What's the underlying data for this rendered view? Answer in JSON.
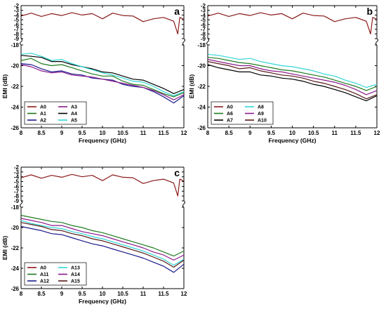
{
  "chart_data": [
    {
      "type": "line",
      "panel_label": "a",
      "xlabel": "Frequency (GHz)",
      "ylabel": "EMI (dB)",
      "xlim": [
        8,
        12
      ],
      "xticks": [
        "8",
        "8.5",
        "9",
        "9.5",
        "10",
        "10.5",
        "11",
        "11.5",
        "12"
      ],
      "upper_ylim": [
        -9,
        -2
      ],
      "upper_yticks": [
        "-2",
        "-3",
        "-4",
        "-5",
        "-6",
        "-7",
        "-8",
        "-9"
      ],
      "lower_ylim": [
        -26,
        -18
      ],
      "lower_yticks": [
        "-18",
        "-20",
        "-22",
        "-24",
        "-26"
      ],
      "legend_position": "lower-left",
      "series": [
        {
          "name": "A0",
          "color": "#8b1a1a",
          "x": [
            8,
            8.25,
            8.5,
            8.75,
            9,
            9.25,
            9.5,
            9.75,
            10,
            10.25,
            10.5,
            10.75,
            11,
            11.25,
            11.5,
            11.75,
            11.85,
            11.9,
            12
          ],
          "y": [
            -4.2,
            -3.6,
            -4.3,
            -3.7,
            -4.1,
            -3.5,
            -4.0,
            -3.7,
            -4.8,
            -3.6,
            -4.1,
            -4.2,
            -5.4,
            -4.8,
            -4.5,
            -5.3,
            -8.0,
            -4.5,
            -4.9
          ]
        },
        {
          "name": "A1",
          "color": "#1f7a1f",
          "x": [
            8,
            8.25,
            8.5,
            8.75,
            9,
            9.25,
            9.5,
            9.75,
            10,
            10.25,
            10.5,
            10.75,
            11,
            11.25,
            11.5,
            11.75,
            12
          ],
          "y": [
            -19.5,
            -19.3,
            -19.8,
            -20.0,
            -19.9,
            -20.2,
            -20.5,
            -20.8,
            -21.0,
            -21.0,
            -21.5,
            -21.8,
            -21.9,
            -22.3,
            -22.7,
            -23.0,
            -22.6
          ]
        },
        {
          "name": "A2",
          "color": "#1a1a8b",
          "x": [
            8,
            8.25,
            8.5,
            8.75,
            9,
            9.25,
            9.5,
            9.75,
            10,
            10.25,
            10.5,
            10.75,
            11,
            11.25,
            11.5,
            11.75,
            12
          ],
          "y": [
            -19.8,
            -19.9,
            -20.3,
            -20.6,
            -20.5,
            -20.8,
            -20.9,
            -21.2,
            -21.3,
            -21.4,
            -21.8,
            -22.0,
            -22.1,
            -22.5,
            -23.0,
            -23.6,
            -22.9
          ]
        },
        {
          "name": "A3",
          "color": "#8b1a8b",
          "x": [
            8,
            8.25,
            8.5,
            8.75,
            9,
            9.25,
            9.5,
            9.75,
            10,
            10.25,
            10.5,
            10.75,
            11,
            11.25,
            11.5,
            11.75,
            12
          ],
          "y": [
            -19.9,
            -20.1,
            -20.5,
            -20.7,
            -20.6,
            -20.9,
            -21.0,
            -21.1,
            -21.3,
            -21.5,
            -21.7,
            -21.9,
            -22.1,
            -22.4,
            -22.8,
            -23.3,
            -22.8
          ]
        },
        {
          "name": "A4",
          "color": "#000000",
          "x": [
            8,
            8.25,
            8.5,
            8.75,
            9,
            9.25,
            9.5,
            9.75,
            10,
            10.25,
            10.5,
            10.75,
            11,
            11.25,
            11.5,
            11.75,
            12
          ],
          "y": [
            -19.0,
            -19.1,
            -19.2,
            -19.6,
            -19.6,
            -19.9,
            -20.1,
            -20.3,
            -20.6,
            -20.7,
            -21.0,
            -21.3,
            -21.4,
            -21.8,
            -22.2,
            -22.7,
            -22.3
          ]
        },
        {
          "name": "A5",
          "color": "#33d6d6",
          "x": [
            8,
            8.25,
            8.5,
            8.75,
            9,
            9.25,
            9.5,
            9.75,
            10,
            10.25,
            10.5,
            10.75,
            11,
            11.25,
            11.5,
            11.75,
            12
          ],
          "y": [
            -18.9,
            -18.8,
            -19.1,
            -19.5,
            -19.4,
            -19.8,
            -20.1,
            -20.4,
            -20.7,
            -20.9,
            -21.2,
            -21.5,
            -21.6,
            -22.0,
            -22.5,
            -22.9,
            -22.5
          ]
        }
      ]
    },
    {
      "type": "line",
      "panel_label": "b",
      "xlabel": "Frequency (GHz)",
      "ylabel": "EMI (dB)",
      "xlim": [
        8,
        12
      ],
      "xticks": [
        "8",
        "8.5",
        "9",
        "9.5",
        "10",
        "10.5",
        "11",
        "11.5",
        "12"
      ],
      "upper_ylim": [
        -9,
        -2
      ],
      "upper_yticks": [
        "-2",
        "-3",
        "-4",
        "-5",
        "-6",
        "-7",
        "-8",
        "-9"
      ],
      "lower_ylim": [
        -26,
        -18
      ],
      "lower_yticks": [
        "-18",
        "-20",
        "-22",
        "-24",
        "-26"
      ],
      "legend_position": "lower-left",
      "series": [
        {
          "name": "A0",
          "color": "#8b1a1a",
          "x": [
            8,
            8.25,
            8.5,
            8.75,
            9,
            9.25,
            9.5,
            9.75,
            10,
            10.25,
            10.5,
            10.75,
            11,
            11.25,
            11.5,
            11.75,
            11.85,
            11.9,
            12
          ],
          "y": [
            -4.2,
            -3.6,
            -4.3,
            -3.7,
            -4.1,
            -3.5,
            -4.0,
            -3.7,
            -4.8,
            -3.6,
            -4.1,
            -4.2,
            -5.4,
            -4.8,
            -4.5,
            -5.3,
            -8.0,
            -4.5,
            -4.9
          ]
        },
        {
          "name": "A6",
          "color": "#1f7a1f",
          "x": [
            8,
            8.25,
            8.5,
            8.75,
            9,
            9.25,
            9.5,
            9.75,
            10,
            10.25,
            10.5,
            10.75,
            11,
            11.25,
            11.5,
            11.75,
            12
          ],
          "y": [
            -19.2,
            -19.3,
            -19.5,
            -19.7,
            -19.8,
            -20.0,
            -20.2,
            -20.4,
            -20.5,
            -20.7,
            -20.9,
            -21.1,
            -21.4,
            -21.7,
            -22.0,
            -22.4,
            -22.0
          ]
        },
        {
          "name": "A7",
          "color": "#000000",
          "x": [
            8,
            8.25,
            8.5,
            8.75,
            9,
            9.25,
            9.5,
            9.75,
            10,
            10.25,
            10.5,
            10.75,
            11,
            11.25,
            11.5,
            11.75,
            12
          ],
          "y": [
            -19.9,
            -20.2,
            -20.4,
            -20.6,
            -20.6,
            -20.9,
            -21.0,
            -21.2,
            -21.3,
            -21.5,
            -21.8,
            -22.0,
            -22.3,
            -22.6,
            -23.0,
            -23.4,
            -22.9
          ]
        },
        {
          "name": "A8",
          "color": "#33d6d6",
          "x": [
            8,
            8.25,
            8.5,
            8.75,
            9,
            9.25,
            9.5,
            9.75,
            10,
            10.25,
            10.5,
            10.75,
            11,
            11.25,
            11.5,
            11.75,
            12
          ],
          "y": [
            -18.9,
            -19.0,
            -19.2,
            -19.4,
            -19.3,
            -19.6,
            -19.8,
            -20.0,
            -20.1,
            -20.3,
            -20.5,
            -20.8,
            -21.0,
            -21.4,
            -21.7,
            -22.1,
            -21.8
          ]
        },
        {
          "name": "A9",
          "color": "#8b1a8b",
          "x": [
            8,
            8.25,
            8.5,
            8.75,
            9,
            9.25,
            9.5,
            9.75,
            10,
            10.25,
            10.5,
            10.75,
            11,
            11.25,
            11.5,
            11.75,
            12
          ],
          "y": [
            -19.4,
            -19.6,
            -19.8,
            -20.0,
            -20.0,
            -20.3,
            -20.5,
            -20.6,
            -20.8,
            -21.0,
            -21.2,
            -21.4,
            -21.6,
            -21.9,
            -22.3,
            -22.8,
            -22.4
          ]
        },
        {
          "name": "A10",
          "color": "#5a1a1a",
          "x": [
            8,
            8.25,
            8.5,
            8.75,
            9,
            9.25,
            9.5,
            9.75,
            10,
            10.25,
            10.5,
            10.75,
            11,
            11.25,
            11.5,
            11.75,
            12
          ],
          "y": [
            -19.6,
            -19.8,
            -20.0,
            -20.3,
            -20.2,
            -20.5,
            -20.7,
            -20.9,
            -21.0,
            -21.2,
            -21.5,
            -21.7,
            -22.0,
            -22.3,
            -22.7,
            -23.2,
            -22.8
          ]
        }
      ]
    },
    {
      "type": "line",
      "panel_label": "c",
      "xlabel": "Frequency (GHz)",
      "ylabel": "EMI (dB)",
      "xlim": [
        8,
        12
      ],
      "xticks": [
        "8",
        "8.5",
        "9",
        "9.5",
        "10",
        "10.5",
        "11",
        "11.5",
        "12"
      ],
      "upper_ylim": [
        -9,
        -2
      ],
      "upper_yticks": [
        "-2",
        "-3",
        "-4",
        "-5",
        "-6",
        "-7",
        "-8",
        "-9"
      ],
      "lower_ylim": [
        -26,
        -18
      ],
      "lower_yticks": [
        "-18",
        "-20",
        "-22",
        "-24",
        "-26"
      ],
      "legend_position": "lower-left",
      "series": [
        {
          "name": "A0",
          "color": "#8b1a1a",
          "x": [
            8,
            8.25,
            8.5,
            8.75,
            9,
            9.25,
            9.5,
            9.75,
            10,
            10.25,
            10.5,
            10.75,
            11,
            11.25,
            11.5,
            11.75,
            11.85,
            11.9,
            12
          ],
          "y": [
            -4.2,
            -3.6,
            -4.3,
            -3.7,
            -4.1,
            -3.5,
            -4.0,
            -3.7,
            -4.8,
            -3.6,
            -4.1,
            -4.2,
            -5.4,
            -4.8,
            -4.5,
            -5.3,
            -8.0,
            -4.5,
            -4.9
          ]
        },
        {
          "name": "A11",
          "color": "#1f7a1f",
          "x": [
            8,
            8.25,
            8.5,
            8.75,
            9,
            9.25,
            9.5,
            9.75,
            10,
            10.25,
            10.5,
            10.75,
            11,
            11.25,
            11.5,
            11.75,
            12
          ],
          "y": [
            -18.8,
            -19.0,
            -19.2,
            -19.4,
            -19.5,
            -19.8,
            -20.0,
            -20.3,
            -20.5,
            -20.8,
            -21.1,
            -21.4,
            -21.7,
            -22.0,
            -22.4,
            -22.8,
            -22.3
          ]
        },
        {
          "name": "A12",
          "color": "#1a1a8b",
          "x": [
            8,
            8.25,
            8.5,
            8.75,
            9,
            9.25,
            9.5,
            9.75,
            10,
            10.25,
            10.5,
            10.75,
            11,
            11.25,
            11.5,
            11.75,
            12
          ],
          "y": [
            -19.9,
            -20.1,
            -20.3,
            -20.6,
            -20.7,
            -21.0,
            -21.3,
            -21.6,
            -21.8,
            -22.1,
            -22.4,
            -22.7,
            -23.0,
            -23.4,
            -23.8,
            -24.4,
            -23.6
          ]
        },
        {
          "name": "A13",
          "color": "#33d6d6",
          "x": [
            8,
            8.25,
            8.5,
            8.75,
            9,
            9.25,
            9.5,
            9.75,
            10,
            10.25,
            10.5,
            10.75,
            11,
            11.25,
            11.5,
            11.75,
            12
          ],
          "y": [
            -19.3,
            -19.6,
            -19.8,
            -20.0,
            -20.1,
            -20.4,
            -20.6,
            -20.9,
            -21.1,
            -21.4,
            -21.7,
            -22.0,
            -22.3,
            -22.7,
            -23.1,
            -23.7,
            -23.1
          ]
        },
        {
          "name": "A14",
          "color": "#8b1a8b",
          "x": [
            8,
            8.25,
            8.5,
            8.75,
            9,
            9.25,
            9.5,
            9.75,
            10,
            10.25,
            10.5,
            10.75,
            11,
            11.25,
            11.5,
            11.75,
            12
          ],
          "y": [
            -19.1,
            -19.3,
            -19.5,
            -19.8,
            -19.8,
            -20.1,
            -20.4,
            -20.6,
            -20.8,
            -21.1,
            -21.4,
            -21.7,
            -22.0,
            -22.4,
            -22.7,
            -23.2,
            -22.7
          ]
        },
        {
          "name": "A15",
          "color": "#5a1a1a",
          "x": [
            8,
            8.25,
            8.5,
            8.75,
            9,
            9.25,
            9.5,
            9.75,
            10,
            10.25,
            10.5,
            10.75,
            11,
            11.25,
            11.5,
            11.75,
            12
          ],
          "y": [
            -19.5,
            -19.7,
            -19.9,
            -20.2,
            -20.3,
            -20.6,
            -20.8,
            -21.1,
            -21.3,
            -21.6,
            -21.9,
            -22.2,
            -22.5,
            -22.9,
            -23.3,
            -23.9,
            -23.2
          ]
        }
      ]
    }
  ]
}
